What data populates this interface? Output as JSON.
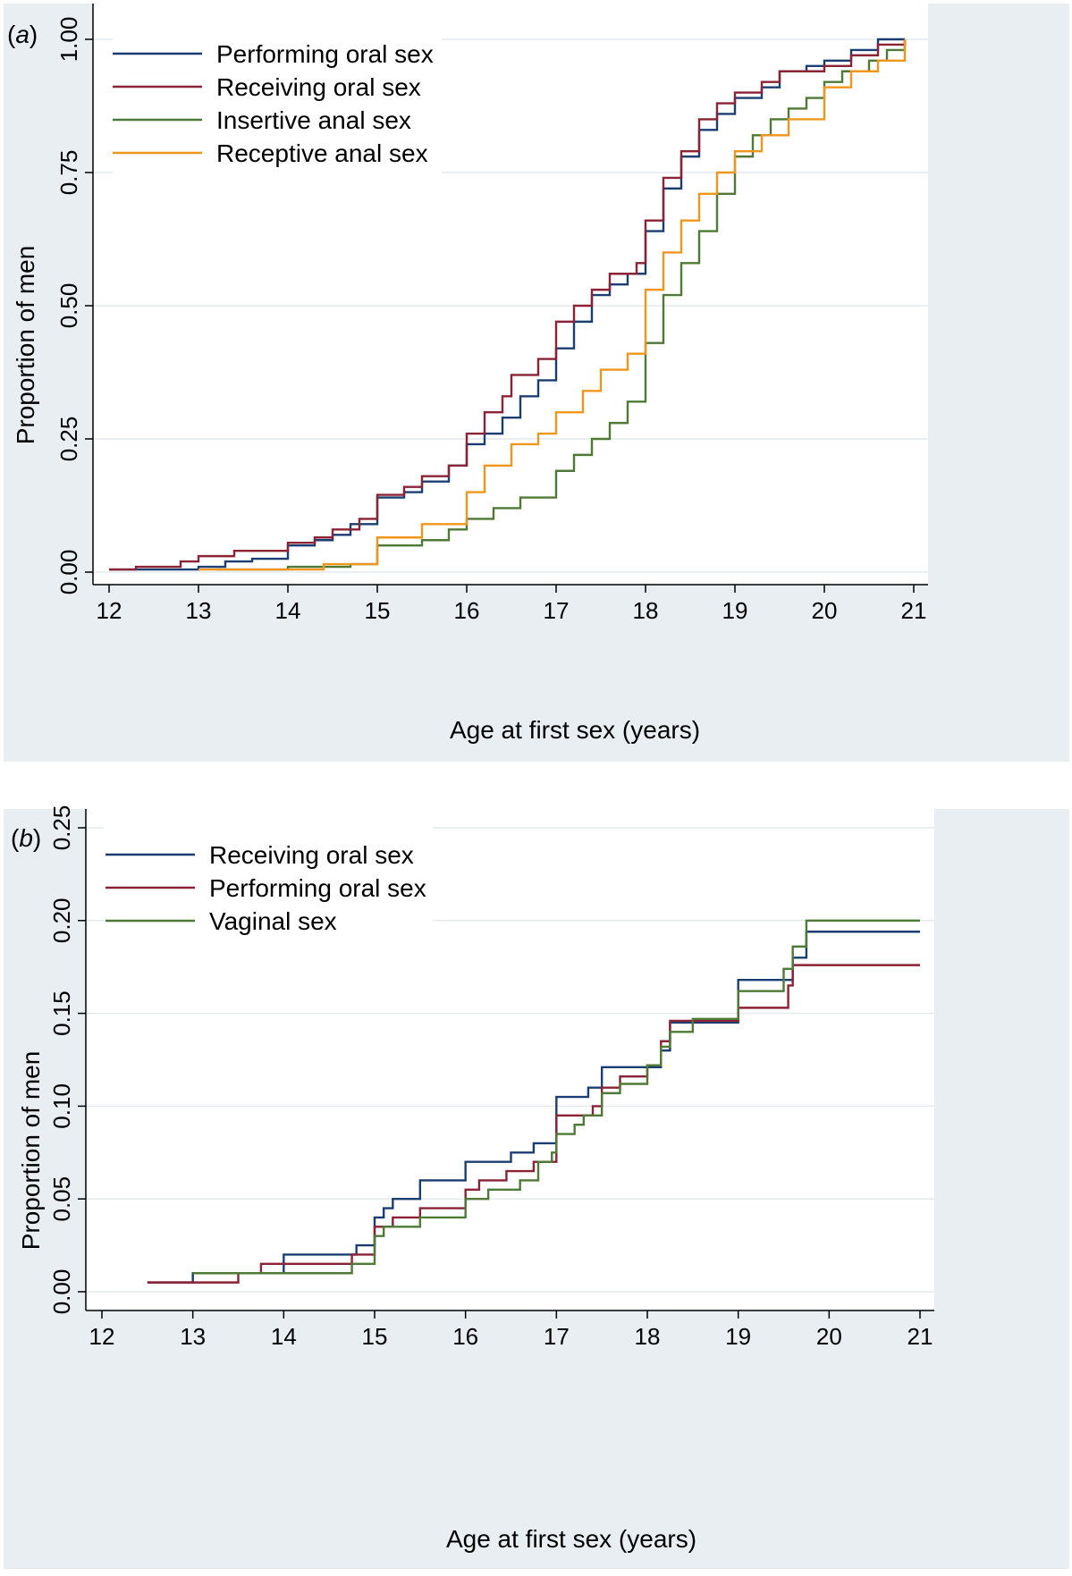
{
  "figure": {
    "panel_a_letter": "a",
    "panel_b_letter": "b"
  },
  "chart_data": [
    {
      "id": "a",
      "type": "line",
      "step": true,
      "panel_label": "(a)",
      "xlabel": "Age at first sex (years)",
      "ylabel": "Proportion of men",
      "xlim": [
        12,
        21
      ],
      "ylim": [
        0,
        1.0
      ],
      "xticks": [
        12,
        13,
        14,
        15,
        16,
        17,
        18,
        19,
        20,
        21
      ],
      "xtick_labels": [
        "12",
        "13",
        "14",
        "15",
        "16",
        "17",
        "18",
        "19",
        "20",
        "21"
      ],
      "yticks": [
        0,
        0.25,
        0.5,
        0.75,
        1.0
      ],
      "ytick_labels": [
        "0.00",
        "0.25",
        "0.50",
        "0.75",
        "1.00"
      ],
      "grid": true,
      "legend_position": "top-left",
      "series": [
        {
          "name": "Performing oral sex",
          "color": "#1a3e72",
          "points": [
            [
              12.0,
              0.005
            ],
            [
              13.0,
              0.01
            ],
            [
              13.3,
              0.02
            ],
            [
              13.6,
              0.025
            ],
            [
              14.0,
              0.05
            ],
            [
              14.3,
              0.06
            ],
            [
              14.5,
              0.07
            ],
            [
              14.7,
              0.09
            ],
            [
              15.0,
              0.14
            ],
            [
              15.3,
              0.15
            ],
            [
              15.5,
              0.17
            ],
            [
              15.8,
              0.2
            ],
            [
              16.0,
              0.24
            ],
            [
              16.2,
              0.26
            ],
            [
              16.4,
              0.29
            ],
            [
              16.6,
              0.33
            ],
            [
              16.8,
              0.36
            ],
            [
              17.0,
              0.42
            ],
            [
              17.2,
              0.47
            ],
            [
              17.4,
              0.52
            ],
            [
              17.6,
              0.54
            ],
            [
              17.8,
              0.56
            ],
            [
              18.0,
              0.64
            ],
            [
              18.2,
              0.72
            ],
            [
              18.4,
              0.78
            ],
            [
              18.6,
              0.83
            ],
            [
              18.8,
              0.86
            ],
            [
              19.0,
              0.89
            ],
            [
              19.3,
              0.91
            ],
            [
              19.5,
              0.94
            ],
            [
              19.8,
              0.95
            ],
            [
              20.0,
              0.96
            ],
            [
              20.3,
              0.98
            ],
            [
              20.6,
              1.0
            ],
            [
              20.9,
              1.0
            ]
          ]
        },
        {
          "name": "Receiving oral sex",
          "color": "#8b2235",
          "points": [
            [
              12.0,
              0.005
            ],
            [
              12.3,
              0.01
            ],
            [
              12.8,
              0.02
            ],
            [
              13.0,
              0.03
            ],
            [
              13.4,
              0.04
            ],
            [
              14.0,
              0.055
            ],
            [
              14.3,
              0.065
            ],
            [
              14.5,
              0.08
            ],
            [
              14.8,
              0.1
            ],
            [
              15.0,
              0.145
            ],
            [
              15.3,
              0.16
            ],
            [
              15.5,
              0.18
            ],
            [
              15.8,
              0.2
            ],
            [
              16.0,
              0.26
            ],
            [
              16.2,
              0.3
            ],
            [
              16.4,
              0.33
            ],
            [
              16.5,
              0.37
            ],
            [
              16.8,
              0.4
            ],
            [
              17.0,
              0.47
            ],
            [
              17.2,
              0.5
            ],
            [
              17.4,
              0.53
            ],
            [
              17.6,
              0.56
            ],
            [
              17.9,
              0.58
            ],
            [
              18.0,
              0.66
            ],
            [
              18.2,
              0.74
            ],
            [
              18.4,
              0.79
            ],
            [
              18.6,
              0.85
            ],
            [
              18.8,
              0.88
            ],
            [
              19.0,
              0.9
            ],
            [
              19.3,
              0.92
            ],
            [
              19.5,
              0.94
            ],
            [
              20.0,
              0.95
            ],
            [
              20.3,
              0.97
            ],
            [
              20.6,
              0.99
            ],
            [
              20.9,
              1.0
            ]
          ]
        },
        {
          "name": "Insertive anal sex",
          "color": "#4e7a36",
          "points": [
            [
              13.2,
              0.005
            ],
            [
              14.0,
              0.01
            ],
            [
              14.7,
              0.015
            ],
            [
              15.0,
              0.05
            ],
            [
              15.5,
              0.06
            ],
            [
              15.8,
              0.08
            ],
            [
              16.0,
              0.1
            ],
            [
              16.3,
              0.12
            ],
            [
              16.6,
              0.14
            ],
            [
              17.0,
              0.19
            ],
            [
              17.2,
              0.22
            ],
            [
              17.4,
              0.25
            ],
            [
              17.6,
              0.28
            ],
            [
              17.8,
              0.32
            ],
            [
              18.0,
              0.43
            ],
            [
              18.2,
              0.52
            ],
            [
              18.4,
              0.58
            ],
            [
              18.6,
              0.64
            ],
            [
              18.8,
              0.71
            ],
            [
              19.0,
              0.78
            ],
            [
              19.2,
              0.82
            ],
            [
              19.4,
              0.85
            ],
            [
              19.6,
              0.87
            ],
            [
              19.8,
              0.89
            ],
            [
              20.0,
              0.92
            ],
            [
              20.2,
              0.94
            ],
            [
              20.5,
              0.96
            ],
            [
              20.7,
              0.98
            ],
            [
              20.9,
              1.0
            ]
          ]
        },
        {
          "name": "Receptive anal sex",
          "color": "#f0961c",
          "points": [
            [
              13.0,
              0.005
            ],
            [
              14.4,
              0.015
            ],
            [
              15.0,
              0.065
            ],
            [
              15.5,
              0.09
            ],
            [
              16.0,
              0.15
            ],
            [
              16.2,
              0.2
            ],
            [
              16.5,
              0.24
            ],
            [
              16.8,
              0.26
            ],
            [
              17.0,
              0.3
            ],
            [
              17.3,
              0.34
            ],
            [
              17.5,
              0.38
            ],
            [
              17.8,
              0.41
            ],
            [
              18.0,
              0.53
            ],
            [
              18.2,
              0.6
            ],
            [
              18.4,
              0.66
            ],
            [
              18.6,
              0.71
            ],
            [
              18.8,
              0.75
            ],
            [
              19.0,
              0.79
            ],
            [
              19.3,
              0.82
            ],
            [
              19.6,
              0.85
            ],
            [
              20.0,
              0.91
            ],
            [
              20.3,
              0.94
            ],
            [
              20.6,
              0.96
            ],
            [
              20.9,
              1.0
            ]
          ]
        }
      ]
    },
    {
      "id": "b",
      "type": "line",
      "step": true,
      "panel_label": "(b)",
      "xlabel": "Age at first sex (years)",
      "ylabel": "Proportion of men",
      "xlim": [
        12,
        21
      ],
      "ylim": [
        0,
        0.25
      ],
      "xticks": [
        12,
        13,
        14,
        15,
        16,
        17,
        18,
        19,
        20,
        21
      ],
      "xtick_labels": [
        "12",
        "13",
        "14",
        "15",
        "16",
        "17",
        "18",
        "19",
        "20",
        "21"
      ],
      "yticks": [
        0,
        0.05,
        0.1,
        0.15,
        0.2,
        0.25
      ],
      "ytick_labels": [
        "0.00",
        "0.05",
        "0.10",
        "0.15",
        "0.20",
        "0.25"
      ],
      "grid": true,
      "legend_position": "top-left",
      "series": [
        {
          "name": "Receiving oral sex",
          "color": "#1a3e72",
          "points": [
            [
              12.5,
              0.005
            ],
            [
              13.0,
              0.01
            ],
            [
              14.0,
              0.02
            ],
            [
              14.8,
              0.025
            ],
            [
              15.0,
              0.04
            ],
            [
              15.1,
              0.045
            ],
            [
              15.2,
              0.05
            ],
            [
              15.5,
              0.06
            ],
            [
              16.0,
              0.07
            ],
            [
              16.5,
              0.075
            ],
            [
              16.75,
              0.08
            ],
            [
              17.0,
              0.105
            ],
            [
              17.35,
              0.11
            ],
            [
              17.5,
              0.121
            ],
            [
              18.0,
              0.121
            ],
            [
              18.15,
              0.13
            ],
            [
              18.25,
              0.145
            ],
            [
              19.0,
              0.168
            ],
            [
              19.6,
              0.18
            ],
            [
              19.75,
              0.194
            ],
            [
              21.0,
              0.194
            ]
          ]
        },
        {
          "name": "Performing oral sex",
          "color": "#8b2235",
          "points": [
            [
              12.5,
              0.005
            ],
            [
              13.5,
              0.01
            ],
            [
              13.75,
              0.015
            ],
            [
              14.75,
              0.02
            ],
            [
              15.0,
              0.035
            ],
            [
              15.2,
              0.04
            ],
            [
              15.5,
              0.045
            ],
            [
              16.0,
              0.055
            ],
            [
              16.15,
              0.06
            ],
            [
              16.45,
              0.065
            ],
            [
              16.75,
              0.07
            ],
            [
              17.0,
              0.095
            ],
            [
              17.4,
              0.1
            ],
            [
              17.5,
              0.11
            ],
            [
              17.7,
              0.116
            ],
            [
              18.0,
              0.122
            ],
            [
              18.15,
              0.135
            ],
            [
              18.25,
              0.146
            ],
            [
              19.0,
              0.153
            ],
            [
              19.55,
              0.165
            ],
            [
              19.6,
              0.176
            ],
            [
              21.0,
              0.176
            ]
          ]
        },
        {
          "name": "Vaginal sex",
          "color": "#4e7a36",
          "points": [
            [
              13.0,
              0.01
            ],
            [
              14.75,
              0.015
            ],
            [
              15.0,
              0.03
            ],
            [
              15.1,
              0.035
            ],
            [
              15.5,
              0.04
            ],
            [
              16.0,
              0.05
            ],
            [
              16.25,
              0.055
            ],
            [
              16.6,
              0.06
            ],
            [
              16.8,
              0.07
            ],
            [
              16.95,
              0.075
            ],
            [
              17.0,
              0.085
            ],
            [
              17.2,
              0.09
            ],
            [
              17.3,
              0.095
            ],
            [
              17.5,
              0.107
            ],
            [
              17.7,
              0.112
            ],
            [
              18.0,
              0.122
            ],
            [
              18.15,
              0.132
            ],
            [
              18.25,
              0.14
            ],
            [
              18.5,
              0.147
            ],
            [
              19.0,
              0.162
            ],
            [
              19.5,
              0.174
            ],
            [
              19.6,
              0.186
            ],
            [
              19.75,
              0.2
            ],
            [
              21.0,
              0.2
            ]
          ]
        }
      ]
    }
  ]
}
